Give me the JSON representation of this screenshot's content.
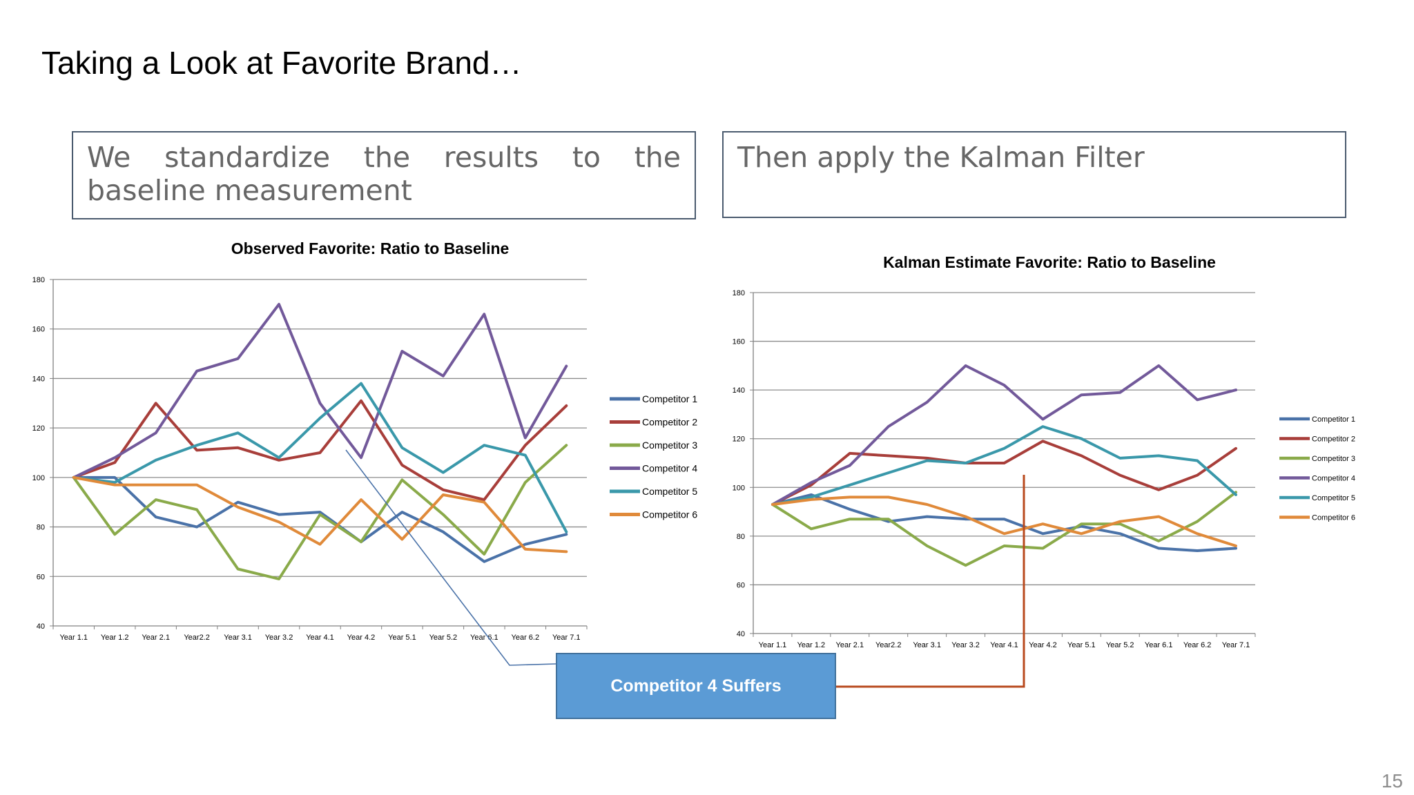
{
  "slide": {
    "title": "Taking a Look at Favorite Brand…",
    "box_left_text": "We standardize the results to the baseline measurement",
    "box_right_text": "Then apply the Kalman Filter",
    "callout_text": "Competitor 4 Suffers",
    "page_number": "15"
  },
  "colors": {
    "Competitor 1": "#4a72a8",
    "Competitor 2": "#a83e3a",
    "Competitor 3": "#8aaa4a",
    "Competitor 4": "#72599a",
    "Competitor 5": "#3a98aa",
    "Competitor 6": "#e08a3a",
    "callout_line_left": "#4a72a8",
    "callout_line_right": "#b84a1e"
  },
  "chart_data": [
    {
      "type": "line",
      "title": "Observed Favorite: Ratio to Baseline",
      "categories": [
        "Year 1.1",
        "Year 1.2",
        "Year 2.1",
        "Year2.2",
        "Year 3.1",
        "Year 3.2",
        "Year 4.1",
        "Year 4.2",
        "Year 5.1",
        "Year 5.2",
        "Year 6.1",
        "Year 6.2",
        "Year 7.1"
      ],
      "ylim": [
        40,
        180
      ],
      "yticks": [
        40,
        60,
        80,
        100,
        120,
        140,
        160,
        180
      ],
      "grid": true,
      "legend": "right",
      "series": [
        {
          "name": "Competitor 1",
          "values": [
            100,
            100,
            84,
            80,
            90,
            85,
            86,
            74,
            86,
            78,
            66,
            73,
            77
          ]
        },
        {
          "name": "Competitor 2",
          "values": [
            100,
            106,
            130,
            111,
            112,
            107,
            110,
            131,
            105,
            95,
            91,
            113,
            129
          ]
        },
        {
          "name": "Competitor 3",
          "values": [
            100,
            77,
            91,
            87,
            63,
            59,
            85,
            74,
            99,
            85,
            69,
            98,
            113
          ]
        },
        {
          "name": "Competitor 4",
          "values": [
            100,
            108,
            118,
            143,
            148,
            170,
            130,
            108,
            151,
            141,
            166,
            116,
            145
          ]
        },
        {
          "name": "Competitor 5",
          "values": [
            100,
            98,
            107,
            113,
            118,
            108,
            124,
            138,
            112,
            102,
            113,
            109,
            78
          ]
        },
        {
          "name": "Competitor 6",
          "values": [
            100,
            97,
            97,
            97,
            88,
            82,
            73,
            91,
            75,
            93,
            90,
            71,
            70
          ]
        }
      ]
    },
    {
      "type": "line",
      "title": "Kalman Estimate Favorite: Ratio to Baseline",
      "categories": [
        "Year 1.1",
        "Year 1.2",
        "Year 2.1",
        "Year2.2",
        "Year 3.1",
        "Year 3.2",
        "Year 4.1",
        "Year 4.2",
        "Year 5.1",
        "Year 5.2",
        "Year 6.1",
        "Year 6.2",
        "Year 7.1"
      ],
      "ylim": [
        40,
        180
      ],
      "yticks": [
        40,
        60,
        80,
        100,
        120,
        140,
        160,
        180
      ],
      "grid": true,
      "legend": "right",
      "series": [
        {
          "name": "Competitor 1",
          "values": [
            93,
            97,
            91,
            86,
            88,
            87,
            87,
            81,
            84,
            81,
            75,
            74,
            75
          ]
        },
        {
          "name": "Competitor 2",
          "values": [
            93,
            101,
            114,
            113,
            112,
            110,
            110,
            119,
            113,
            105,
            99,
            105,
            116
          ]
        },
        {
          "name": "Competitor 3",
          "values": [
            93,
            83,
            87,
            87,
            76,
            68,
            76,
            75,
            85,
            85,
            78,
            86,
            98
          ]
        },
        {
          "name": "Competitor 4",
          "values": [
            93,
            102,
            109,
            125,
            135,
            150,
            142,
            128,
            138,
            139,
            150,
            136,
            140
          ]
        },
        {
          "name": "Competitor 5",
          "values": [
            93,
            96,
            101,
            106,
            111,
            110,
            116,
            125,
            120,
            112,
            113,
            111,
            97
          ]
        },
        {
          "name": "Competitor 6",
          "values": [
            93,
            95,
            96,
            96,
            93,
            88,
            81,
            85,
            81,
            86,
            88,
            81,
            76
          ]
        }
      ]
    }
  ]
}
